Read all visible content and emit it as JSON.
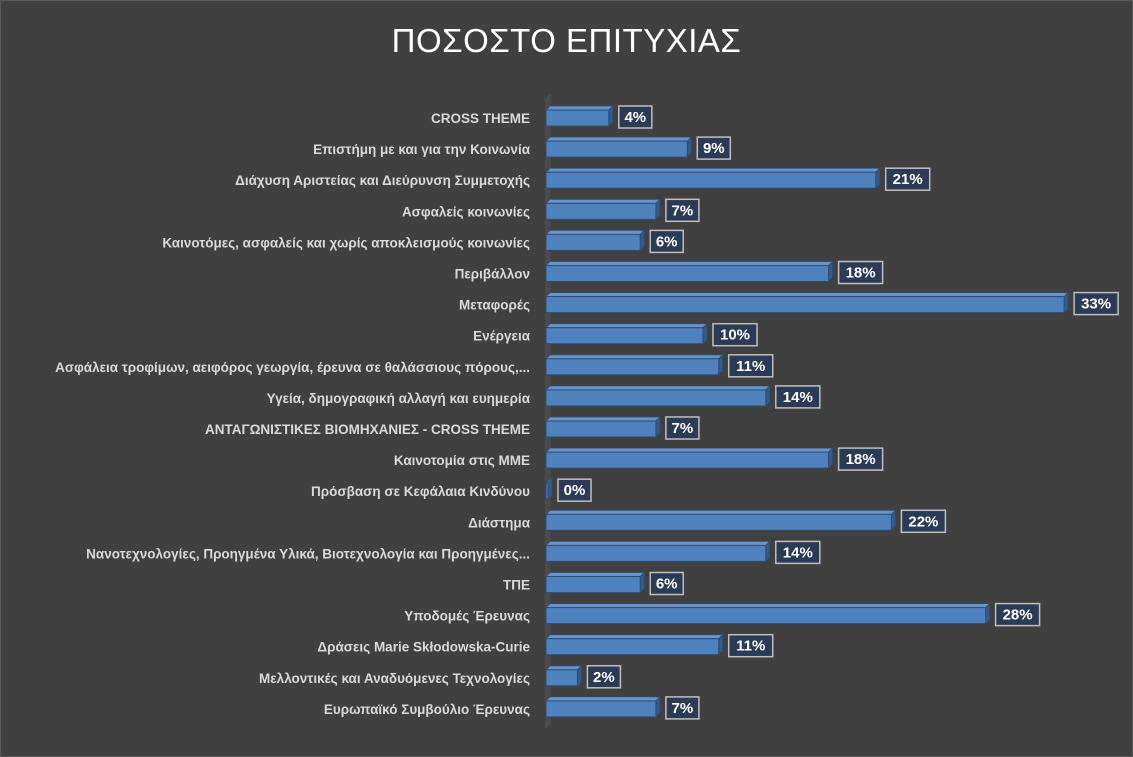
{
  "chart_data": {
    "type": "bar",
    "orientation": "horizontal",
    "title": "ΠΟΣΟΣΤΟ ΕΠΙΤΥΧΙΑΣ",
    "categories": [
      "CROSS THEME",
      "Επιστήμη με και για την Κοινωνία",
      "Διάχυση Αριστείας και Διεύρυνση Συμμετοχής",
      "Ασφαλείς κοινωνίες",
      "Καινοτόμες, ασφαλείς και χωρίς αποκλεισμούς κοινωνίες",
      "Περιβάλλον",
      "Μεταφορές",
      "Ενέργεια",
      "Ασφάλεια τροφίμων, αειφόρος γεωργία, έρευνα σε θαλάσσιους πόρους,...",
      "Υγεία, δημογραφική αλλαγή και ευημερία",
      "ΑΝΤΑΓΩΝΙΣΤΙΚΕΣ ΒΙΟΜΗΧΑΝΙΕΣ - CROSS THEME",
      "Καινοτομία στις ΜΜΕ",
      "Πρόσβαση σε Κεφάλαια Κινδύνου",
      "Διάστημα",
      "Νανοτεχνολογίες,  Προηγμένα Υλικά, Βιοτεχνολογία και Προηγμένες...",
      "ΤΠΕ",
      "Υποδομές Έρευνας",
      "Δράσεις Marie Skłodowska-Curie",
      "Μελλοντικές και Αναδυόμενες Τεχνολογίες",
      "Ευρωπαϊκό Συμβούλιο Έρευνας"
    ],
    "values": [
      4,
      9,
      21,
      7,
      6,
      18,
      33,
      10,
      11,
      14,
      7,
      18,
      0,
      22,
      14,
      6,
      28,
      11,
      2,
      7
    ],
    "value_labels": [
      "4%",
      "9%",
      "21%",
      "7%",
      "6%",
      "18%",
      "33%",
      "10%",
      "11%",
      "14%",
      "7%",
      "18%",
      "0%",
      "22%",
      "14%",
      "6%",
      "28%",
      "11%",
      "2%",
      "7%"
    ],
    "xlim": [
      0,
      34
    ],
    "grid": false,
    "legend": "none",
    "bar_color": "#4f81bd",
    "bar_edge_color": "#2c4d75",
    "bar_depth_color": "#37598a",
    "label_box_color": "#2b3a55",
    "label_box_border": "#bfbfbf",
    "background": "#404040",
    "category_text_color": "#d9d9d9"
  }
}
